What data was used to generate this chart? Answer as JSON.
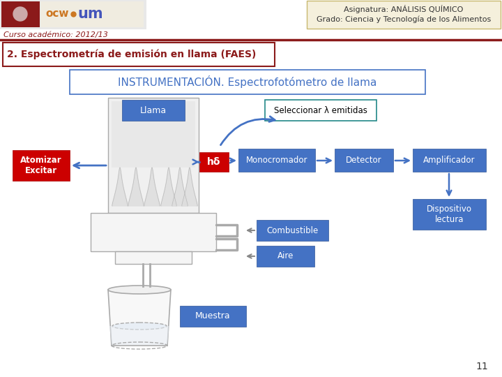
{
  "slide_bg": "#ffffff",
  "header_text1": "Asignatura: ANÁLISIS QUÍMICO",
  "header_text2": "Grado: Ciencia y Tecnología de los Alimentos",
  "header_bg": "#f5f0dc",
  "header_border": "#c8b870",
  "curso_text": "Curso académico: 2012/13",
  "divider_color": "#8b1a1a",
  "title_text": "2. Espectrometría de emisión en llama (FAES)",
  "title_border": "#8b1a1a",
  "title_text_color": "#8b1a1a",
  "sub_title": "INSTRUMENTACIÓN. Espectrofotómetro de llama",
  "sub_title_color": "#4472c4",
  "sub_title_border": "#4472c4",
  "blue_box_color": "#4472c4",
  "red_box_color": "#cc0000",
  "page_number": "11",
  "arrow_blue": "#4472c4",
  "arrow_gray": "#888888"
}
